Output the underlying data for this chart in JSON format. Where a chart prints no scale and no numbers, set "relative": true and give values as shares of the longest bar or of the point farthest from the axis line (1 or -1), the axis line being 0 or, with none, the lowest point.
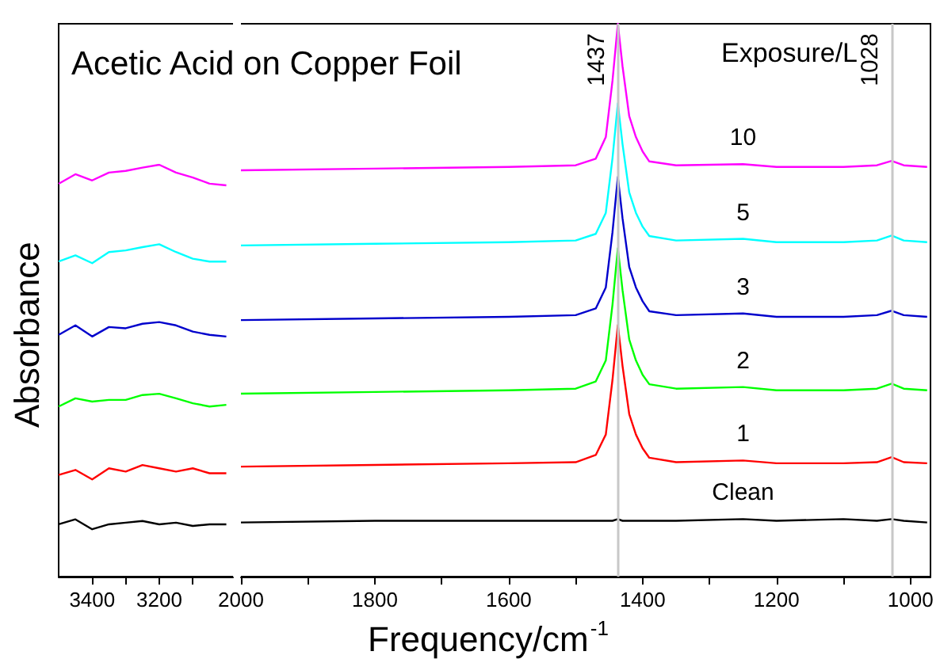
{
  "chart_data": [
    {
      "type": "line",
      "title": "Acetic Acid on Copper Foil",
      "ylabel": "Absorbance",
      "relative": true,
      "tick_labels": "x",
      "xlim": [
        3500,
        2980
      ],
      "xticks": [
        3400,
        {
          "value": 3300,
          "label": null
        },
        3200,
        {
          "value": 3100,
          "label": null
        }
      ],
      "x": [
        3500,
        3450,
        3400,
        3350,
        3300,
        3250,
        3200,
        3150,
        3100,
        3050,
        3000
      ],
      "series": [
        {
          "color": "#000000",
          "values": [
            0.127,
            0.139,
            0.115,
            0.127,
            0.131,
            0.135,
            0.127,
            0.131,
            0.123,
            0.127,
            0.127
          ]
        },
        {
          "color": "#ff0000",
          "values": [
            0.247,
            0.259,
            0.236,
            0.263,
            0.255,
            0.271,
            0.263,
            0.255,
            0.263,
            0.251,
            0.251
          ]
        },
        {
          "color": "#00ff00",
          "values": [
            0.413,
            0.433,
            0.425,
            0.429,
            0.429,
            0.441,
            0.444,
            0.433,
            0.421,
            0.413,
            0.417
          ]
        },
        {
          "color": "#0000cc",
          "values": [
            0.587,
            0.61,
            0.583,
            0.606,
            0.603,
            0.614,
            0.618,
            0.61,
            0.595,
            0.587,
            0.583
          ]
        },
        {
          "color": "#00ffff",
          "values": [
            0.765,
            0.78,
            0.761,
            0.788,
            0.792,
            0.8,
            0.807,
            0.788,
            0.772,
            0.765,
            0.765
          ]
        },
        {
          "color": "#ff00ff",
          "values": [
            0.954,
            0.977,
            0.962,
            0.981,
            0.985,
            0.993,
            1.0,
            0.981,
            0.969,
            0.954,
            0.95
          ]
        }
      ]
    },
    {
      "type": "line",
      "xlabel": "Frequency/cm$^{-1}$",
      "legend_title": "Exposure/L",
      "relative": true,
      "tick_labels": "x",
      "xlim": [
        2000,
        970
      ],
      "xticks": [
        2000,
        {
          "value": 1900,
          "label": null
        },
        1800,
        {
          "value": 1700,
          "label": null
        },
        1600,
        {
          "value": 1500,
          "label": null
        },
        1400,
        {
          "value": 1300,
          "label": null
        },
        1200,
        {
          "value": 1100,
          "label": null
        },
        1000
      ],
      "x": [
        2000,
        1800,
        1600,
        1500,
        1470,
        1455,
        1445,
        1437,
        1430,
        1420,
        1410,
        1400,
        1390,
        1350,
        1250,
        1200,
        1100,
        1050,
        1028,
        1010,
        975
      ],
      "ref_lines": [
        {
          "axis": "x",
          "value": 1437,
          "label": "1437",
          "color": "#c8c8c8"
        },
        {
          "axis": "x",
          "value": 1028,
          "label": "1028",
          "color": "#c8c8c8"
        }
      ],
      "series": [
        {
          "name": "Clean",
          "color": "#000000",
          "values": [
            0.098,
            0.101,
            0.101,
            0.101,
            0.101,
            0.101,
            0.101,
            0.104,
            0.101,
            0.101,
            0.101,
            0.101,
            0.101,
            0.101,
            0.104,
            0.101,
            0.104,
            0.101,
            0.104,
            0.101,
            0.098
          ]
        },
        {
          "name": "1",
          "color": "#ff0000",
          "values": [
            0.199,
            0.202,
            0.205,
            0.207,
            0.22,
            0.257,
            0.356,
            0.455,
            0.381,
            0.294,
            0.257,
            0.232,
            0.215,
            0.207,
            0.21,
            0.205,
            0.205,
            0.207,
            0.216,
            0.207,
            0.205
          ]
        },
        {
          "name": "2",
          "color": "#00ff00",
          "values": [
            0.331,
            0.334,
            0.337,
            0.34,
            0.353,
            0.391,
            0.492,
            0.594,
            0.518,
            0.429,
            0.391,
            0.365,
            0.348,
            0.34,
            0.343,
            0.337,
            0.337,
            0.34,
            0.349,
            0.34,
            0.337
          ]
        },
        {
          "name": "3",
          "color": "#0000cc",
          "values": [
            0.464,
            0.467,
            0.47,
            0.473,
            0.485,
            0.523,
            0.623,
            0.723,
            0.648,
            0.56,
            0.523,
            0.498,
            0.48,
            0.473,
            0.476,
            0.47,
            0.47,
            0.473,
            0.481,
            0.473,
            0.47
          ]
        },
        {
          "name": "5",
          "color": "#00ffff",
          "values": [
            0.599,
            0.602,
            0.605,
            0.608,
            0.62,
            0.658,
            0.757,
            0.856,
            0.782,
            0.695,
            0.658,
            0.633,
            0.616,
            0.608,
            0.611,
            0.605,
            0.605,
            0.608,
            0.617,
            0.608,
            0.605
          ]
        },
        {
          "name": "10",
          "color": "#ff00ff",
          "values": [
            0.735,
            0.738,
            0.741,
            0.744,
            0.756,
            0.795,
            0.897,
            1.0,
            0.923,
            0.833,
            0.795,
            0.769,
            0.751,
            0.744,
            0.746,
            0.741,
            0.741,
            0.744,
            0.752,
            0.744,
            0.741
          ]
        }
      ]
    }
  ]
}
